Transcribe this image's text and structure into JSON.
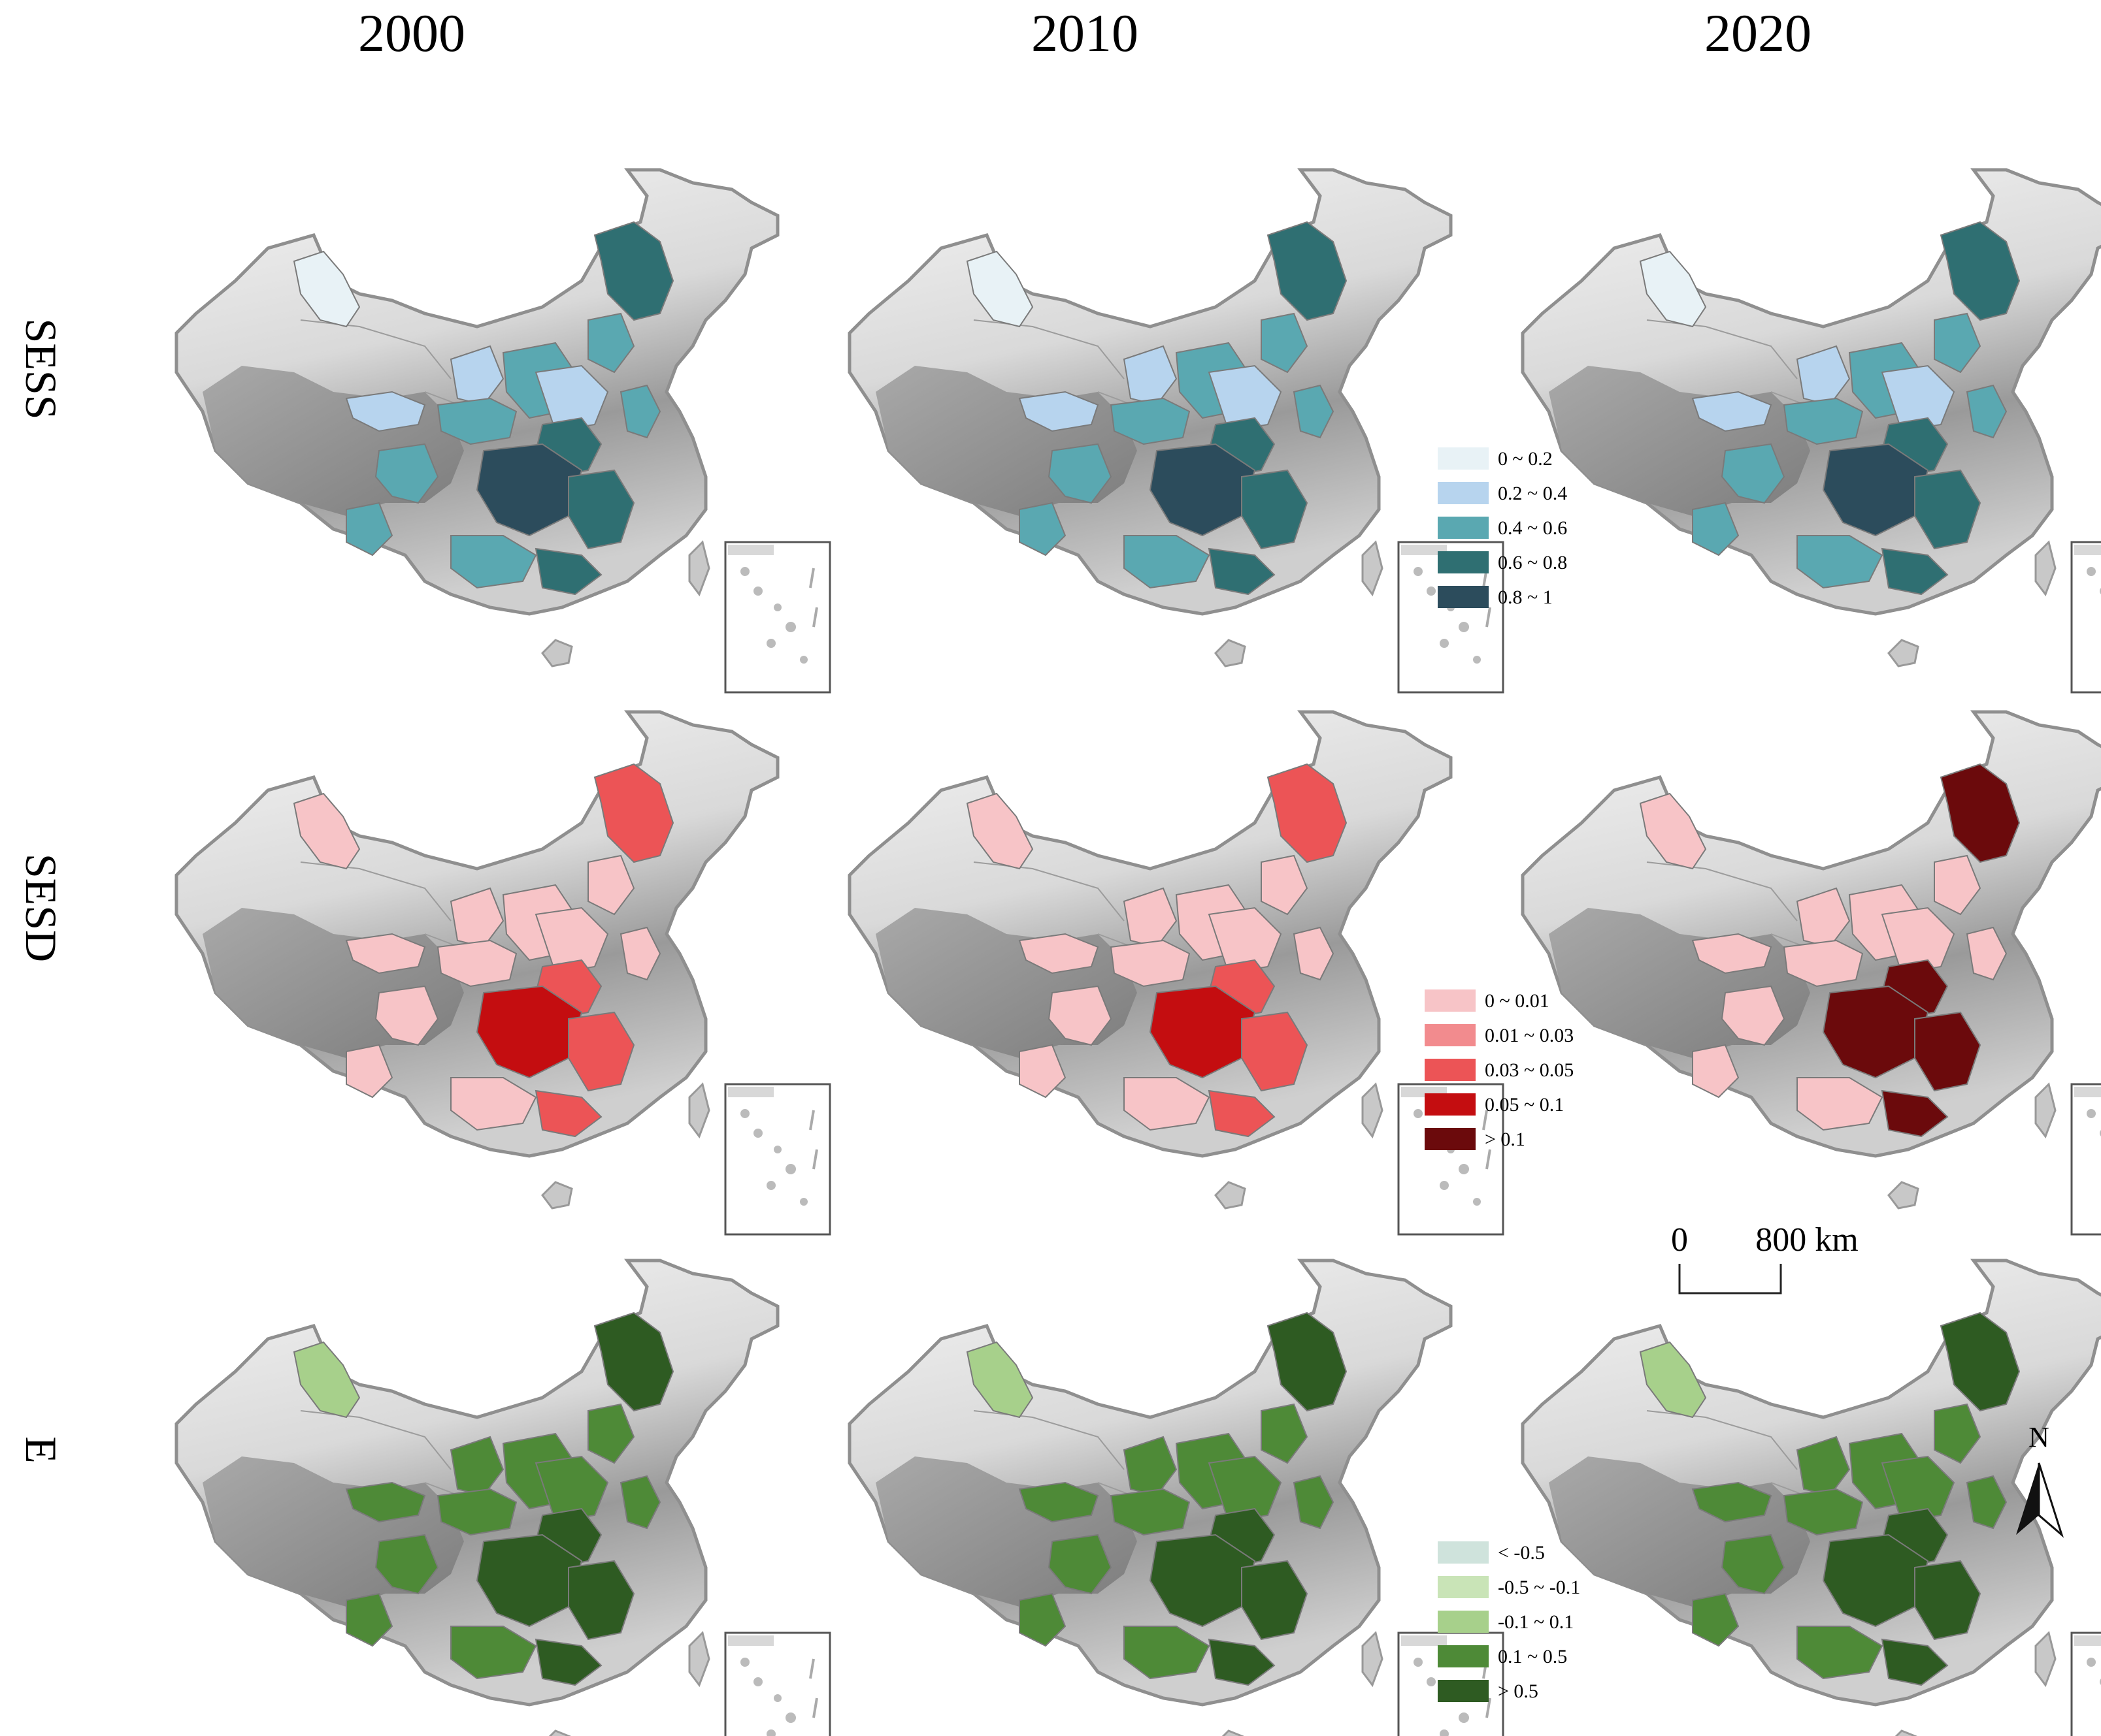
{
  "columns": [
    {
      "year": "2000"
    },
    {
      "year": "2010"
    },
    {
      "year": "2020"
    }
  ],
  "rows": [
    {
      "label": "SESS",
      "legend": [
        {
          "label": "0 ~ 0.2",
          "color": "#e8f2f6"
        },
        {
          "label": "0.2 ~ 0.4",
          "color": "#b7d4ee"
        },
        {
          "label": "0.4 ~ 0.6",
          "color": "#5aa8b1"
        },
        {
          "label": "0.6 ~ 0.8",
          "color": "#2f6f72"
        },
        {
          "label": "0.8 ~ 1",
          "color": "#2c4c5c"
        }
      ]
    },
    {
      "label": "SESD",
      "legend": [
        {
          "label": "0 ~ 0.01",
          "color": "#f7c4c7"
        },
        {
          "label": "0.01 ~ 0.03",
          "color": "#f28b8e"
        },
        {
          "label": "0.03 ~ 0.05",
          "color": "#ec5456"
        },
        {
          "label": "0.05 ~ 0.1",
          "color": "#c40d10"
        },
        {
          "label": "> 0.1",
          "color": "#6b0a0c"
        }
      ]
    },
    {
      "label": "E",
      "legend": [
        {
          "label": "< -0.5",
          "color": "#cfe3dc"
        },
        {
          "label": "-0.5 ~ -0.1",
          "color": "#c9e4b7"
        },
        {
          "label": "-0.1 ~ 0.1",
          "color": "#a7d08b"
        },
        {
          "label": "0.1 ~ 0.5",
          "color": "#4e8a37"
        },
        {
          "label": "> 0.5",
          "color": "#2e5b22"
        }
      ]
    }
  ],
  "scale_bar": {
    "start": "0",
    "end": "800 km"
  },
  "north_arrow": {
    "label": "N"
  }
}
